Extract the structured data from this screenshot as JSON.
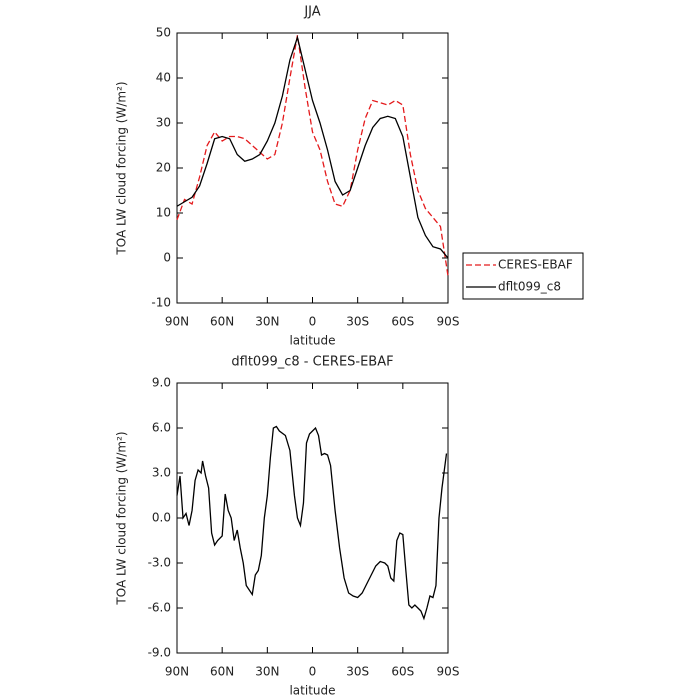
{
  "chart_data": [
    {
      "type": "line",
      "title": "JJA",
      "xlabel": "latitude",
      "ylabel": "TOA LW cloud forcing (W/m²)",
      "x": [
        90,
        85,
        80,
        75,
        70,
        65,
        60,
        55,
        50,
        45,
        40,
        35,
        30,
        25,
        20,
        15,
        10,
        5,
        0,
        -5,
        -10,
        -15,
        -20,
        -25,
        -30,
        -35,
        -40,
        -45,
        -50,
        -55,
        -60,
        -65,
        -70,
        -75,
        -80,
        -85,
        -90
      ],
      "series": [
        {
          "name": "CERES-EBAF",
          "color": "#e41a1c",
          "dash": true,
          "values": [
            8.5,
            13,
            12,
            18,
            25,
            28,
            26,
            27,
            27,
            26.5,
            25,
            23.5,
            22,
            23,
            30,
            40,
            49.5,
            38,
            28,
            24,
            17,
            12,
            11.5,
            15,
            24,
            31,
            35,
            34.5,
            34,
            35,
            34,
            23,
            15,
            11,
            9,
            7,
            -4
          ]
        },
        {
          "name": "dflt099_c8",
          "color": "#000000",
          "dash": false,
          "values": [
            11.5,
            12.5,
            13.5,
            16,
            21,
            26.5,
            27,
            26.5,
            23,
            21.5,
            22,
            23,
            26,
            30,
            36,
            44,
            49,
            42,
            35,
            30,
            24,
            17,
            14,
            15,
            20,
            25,
            29,
            31,
            31.5,
            31,
            27,
            18,
            9,
            5,
            2.5,
            2,
            0
          ]
        }
      ],
      "xlim": [
        90,
        -90
      ],
      "xticks": [
        {
          "value": 90,
          "label": "90N"
        },
        {
          "value": 60,
          "label": "60N"
        },
        {
          "value": 30,
          "label": "30N"
        },
        0,
        {
          "value": -30,
          "label": "30S"
        },
        {
          "value": -60,
          "label": "60S"
        },
        {
          "value": -90,
          "label": "90S"
        }
      ],
      "ylim": [
        -10,
        50
      ],
      "yticks": [
        -10,
        0,
        10,
        20,
        30,
        40,
        50
      ],
      "legend": "right"
    },
    {
      "type": "line",
      "title": "dflt099_c8 - CERES-EBAF",
      "xlabel": "latitude",
      "ylabel": "TOA LW cloud forcing (W/m²)",
      "x": [
        90,
        88,
        86,
        84,
        82,
        80,
        78,
        76,
        74,
        73,
        71,
        69,
        67,
        65,
        63,
        60,
        58,
        56,
        54,
        52,
        50,
        48,
        46,
        44,
        42,
        40,
        38,
        36,
        34,
        32,
        30,
        28,
        26,
        24,
        22,
        18,
        15,
        12,
        10,
        8,
        6,
        4,
        2,
        0,
        -2,
        -4,
        -6,
        -8,
        -10,
        -12,
        -15,
        -18,
        -21,
        -24,
        -27,
        -30,
        -33,
        -36,
        -39,
        -42,
        -45,
        -48,
        -50,
        -52,
        -54,
        -56,
        -58,
        -60,
        -62,
        -64,
        -66,
        -68,
        -70,
        -72,
        -74,
        -76,
        -78,
        -80,
        -82,
        -84,
        -86,
        -89
      ],
      "series": [
        {
          "name": "dflt099_c8 - CERES-EBAF",
          "color": "#000000",
          "dash": false,
          "values": [
            1.5,
            2.8,
            0,
            0.3,
            -0.5,
            0.5,
            2.5,
            3.2,
            3.0,
            3.8,
            2.8,
            2.0,
            -1.0,
            -1.8,
            -1.5,
            -1.2,
            1.6,
            0.5,
            0,
            -1.5,
            -0.8,
            -2.0,
            -3.0,
            -4.5,
            -4.8,
            -5.1,
            -3.8,
            -3.5,
            -2.5,
            0,
            1.5,
            4,
            6.0,
            6.1,
            5.8,
            5.5,
            4.5,
            1.5,
            0,
            -0.5,
            1,
            5,
            5.6,
            5.8,
            6.0,
            5.5,
            4.2,
            4.3,
            4.2,
            3.5,
            0.5,
            -2,
            -4,
            -5,
            -5.2,
            -5.3,
            -5.0,
            -4.4,
            -3.8,
            -3.2,
            -2.9,
            -3.0,
            -3.2,
            -4.0,
            -4.2,
            -1.5,
            -1.0,
            -1.1,
            -3.5,
            -5.8,
            -6.0,
            -5.8,
            -6.0,
            -6.2,
            -6.7,
            -6.0,
            -5.2,
            -5.3,
            -4.5,
            0,
            2,
            4.3
          ]
        }
      ],
      "xlim": [
        90,
        -90
      ],
      "xticks": [
        {
          "value": 90,
          "label": "90N"
        },
        {
          "value": 60,
          "label": "60N"
        },
        {
          "value": 30,
          "label": "30N"
        },
        0,
        {
          "value": -30,
          "label": "30S"
        },
        {
          "value": -60,
          "label": "60S"
        },
        {
          "value": -90,
          "label": "90S"
        }
      ],
      "ylim": [
        -9,
        9
      ],
      "yticks": [
        {
          "value": -9,
          "label": "-9.0"
        },
        {
          "value": -6,
          "label": "-6.0"
        },
        {
          "value": -3,
          "label": "-3.0"
        },
        {
          "value": 0,
          "label": "0.0"
        },
        {
          "value": 3,
          "label": "3.0"
        },
        {
          "value": 6,
          "label": "6.0"
        },
        {
          "value": 9,
          "label": "9.0"
        }
      ]
    }
  ]
}
